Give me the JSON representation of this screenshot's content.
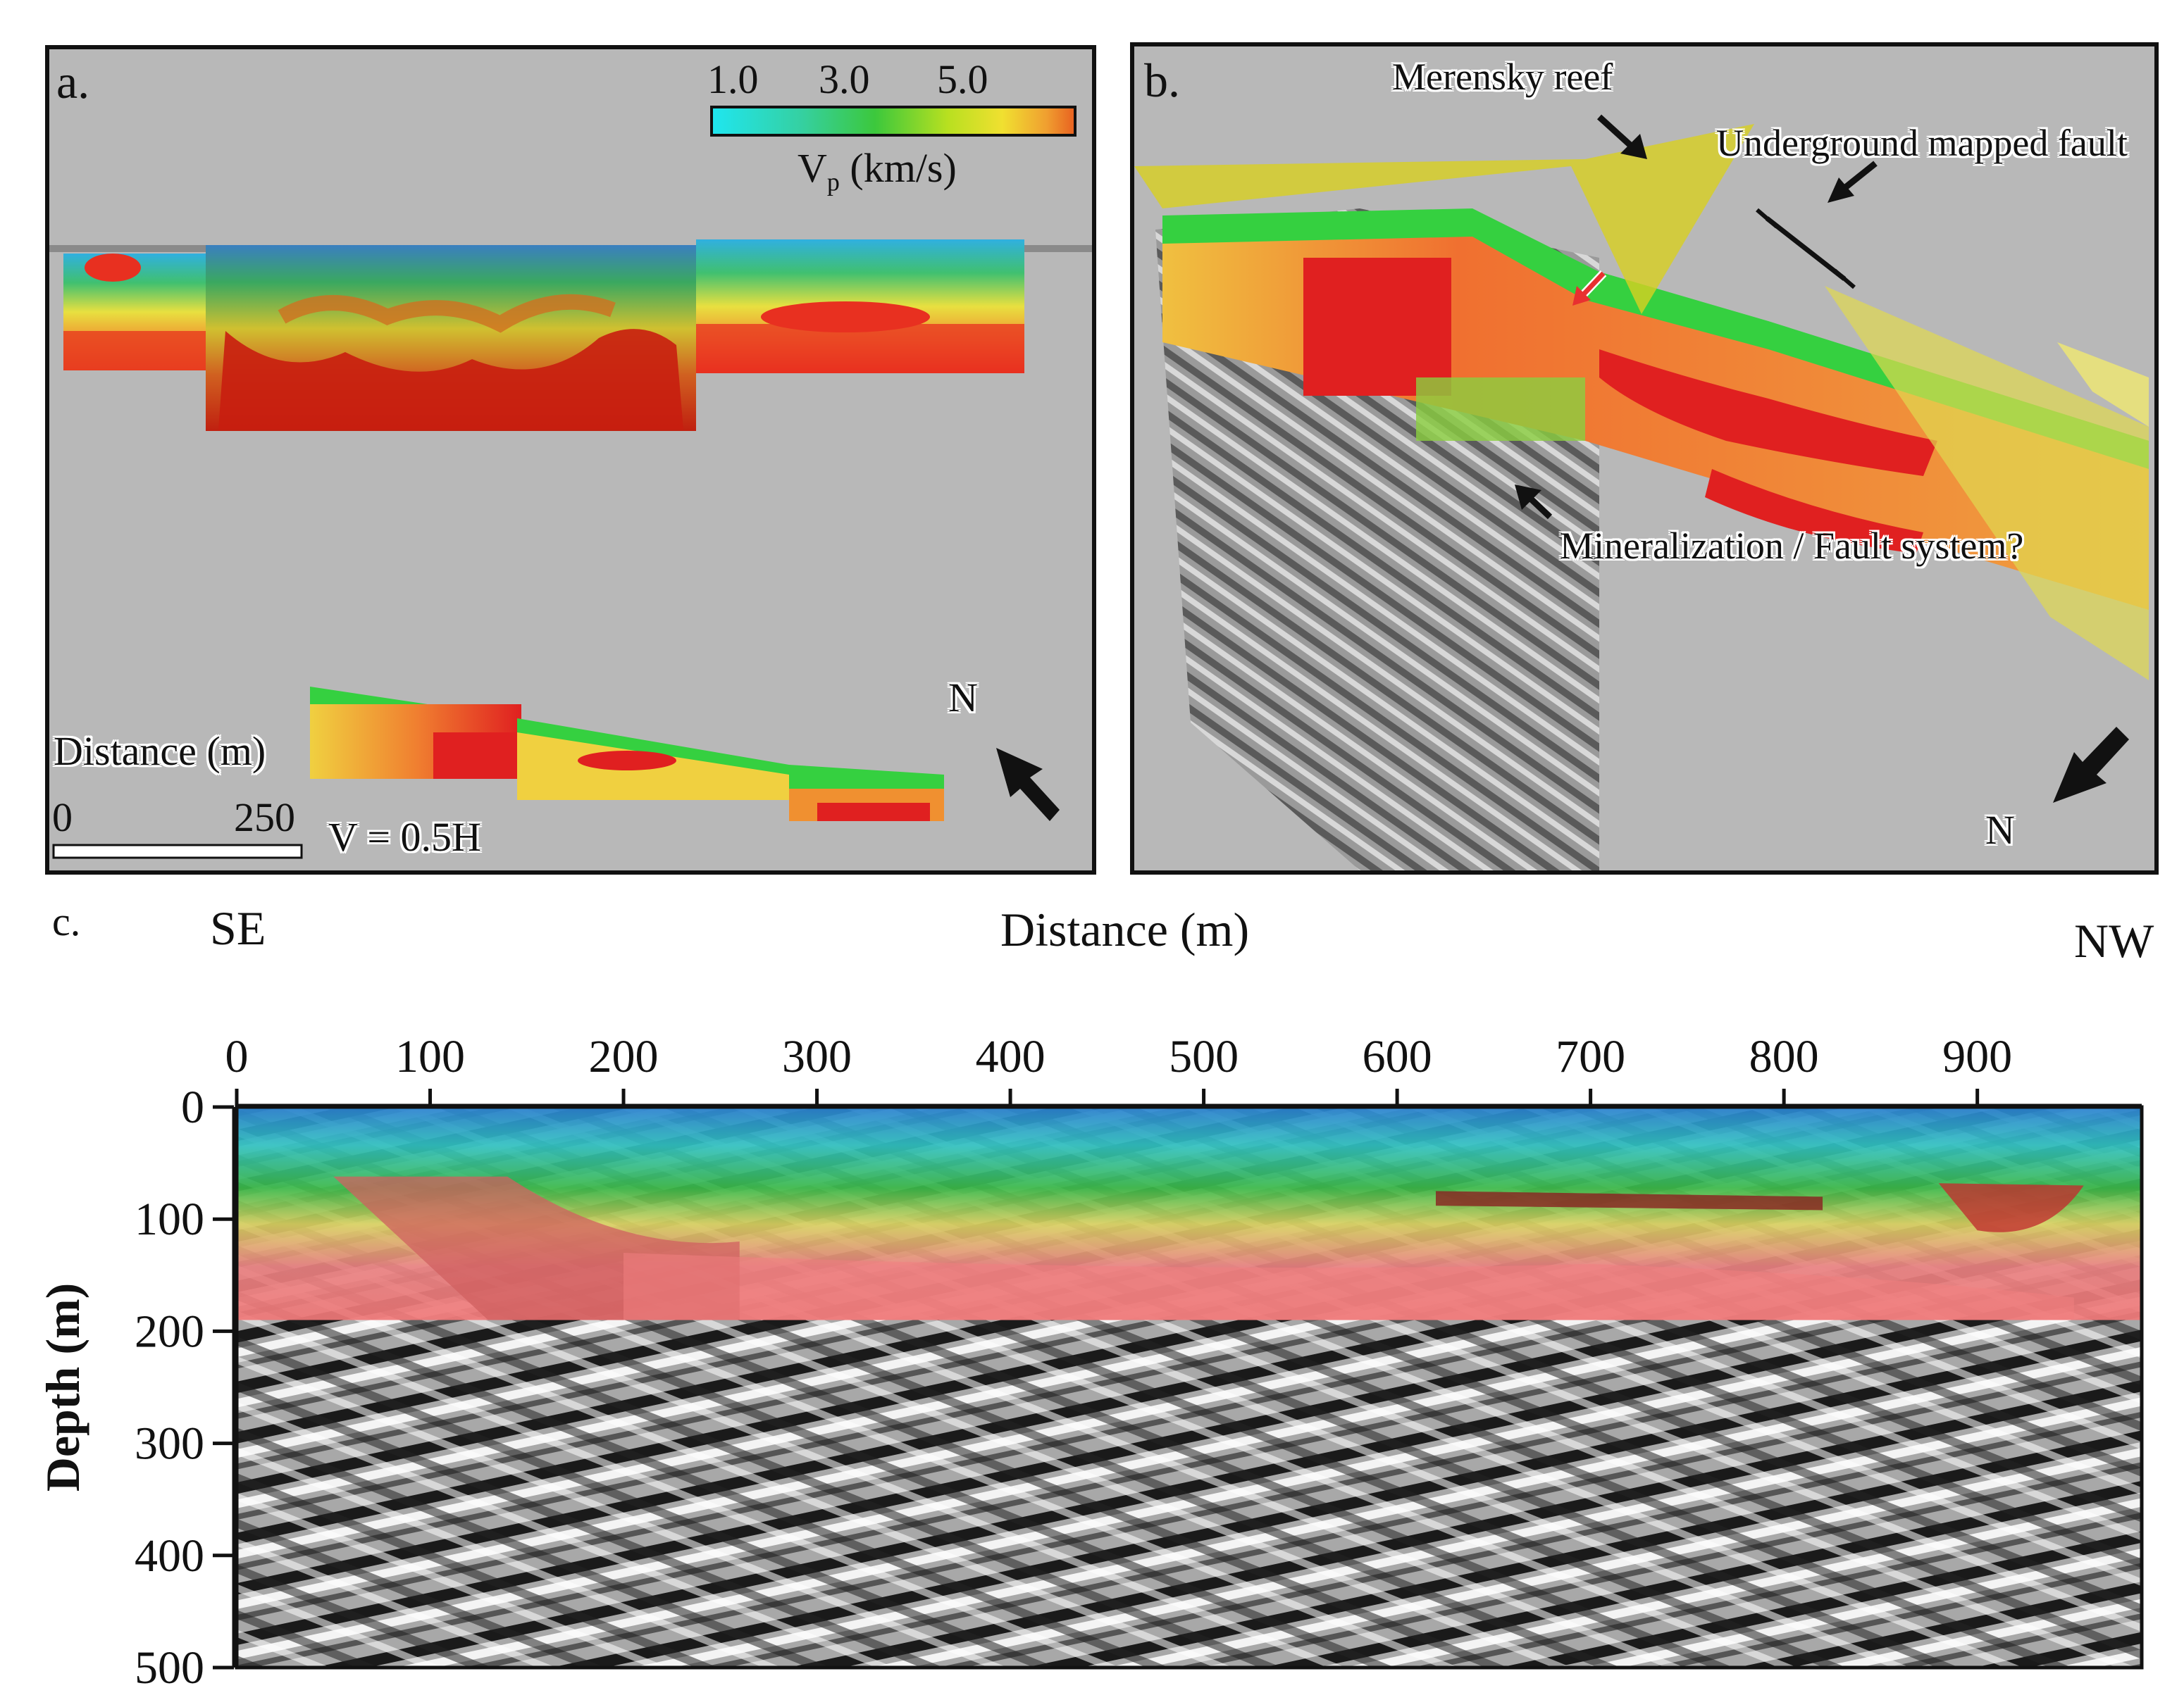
{
  "panel_a": {
    "label": "a.",
    "colorbar": {
      "ticks": [
        "1.0",
        "3.0",
        "5.0"
      ],
      "title": "V",
      "title_sub": "p",
      "title_unit": "(km/s)",
      "colors": [
        "#1fe6f0",
        "#35d0a0",
        "#3cc83c",
        "#b8e020",
        "#f0e030",
        "#f0a030",
        "#e83020"
      ]
    },
    "scale_label": "Distance (m)",
    "scale_ticks": [
      "0",
      "250"
    ],
    "exaggeration": "V = 0.5H",
    "north": "N"
  },
  "panel_b": {
    "label": "b.",
    "annotations": {
      "merensky": "Merensky reef",
      "fault": "Underground mapped fault",
      "mineralization": "Mineralization / Fault system?"
    },
    "north": "N"
  },
  "panel_c": {
    "label": "c.",
    "left_dir": "SE",
    "right_dir": "NW",
    "xlabel": "Distance (m)",
    "ylabel": "Depth (m)"
  },
  "chart_data": {
    "type": "heatmap",
    "title": "",
    "xlabel": "Distance (m)",
    "ylabel": "Depth (m)",
    "x_ticks": [
      0,
      100,
      200,
      300,
      400,
      500,
      600,
      700,
      800,
      900
    ],
    "y_ticks": [
      0,
      100,
      200,
      300,
      400,
      500
    ],
    "xlim": [
      0,
      985
    ],
    "ylim": [
      0,
      500
    ],
    "y_inverted": true,
    "overlay_depth_max": 190,
    "layers": [
      {
        "name": "Vp overlay",
        "depth_range": [
          0,
          190
        ]
      },
      {
        "name": "seismic section",
        "depth_range": [
          190,
          500
        ]
      }
    ]
  }
}
